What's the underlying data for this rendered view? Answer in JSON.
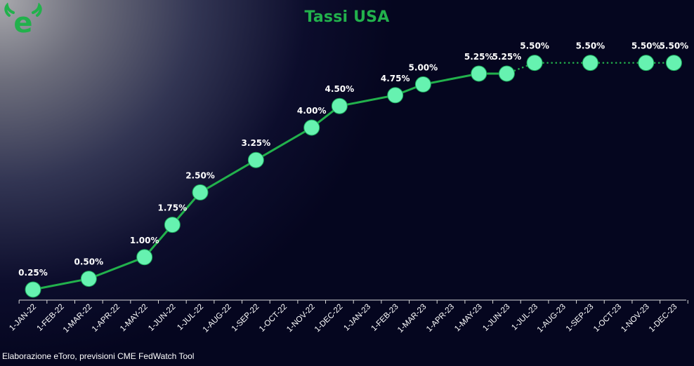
{
  "header": {
    "title": "Tassi USA"
  },
  "logo": {
    "text": "e",
    "icon": "etoro-bull-icon",
    "color": "#22b14c"
  },
  "footer": {
    "source": "Elaborazione eToro, previsioni CME FedWatch Tool"
  },
  "colors": {
    "line": "#22b14c",
    "marker": "#66f2b0",
    "title": "#22b14c"
  },
  "chart_data": {
    "type": "line",
    "title": "Tassi USA",
    "xlabel": "",
    "ylabel": "",
    "grid": false,
    "legend": "none",
    "categories": [
      "1-JAN-22",
      "1-FEB-22",
      "1-MAR-22",
      "1-APR-22",
      "1-MAY-22",
      "1-JUN-22",
      "1-JUL-22",
      "1-AUG-22",
      "1-SEP-22",
      "1-OCT-22",
      "1-NOV-22",
      "1-DEC-22",
      "1-JAN-23",
      "1-FEB-23",
      "1-MAR-23",
      "1-APR-23",
      "1-MAY-23",
      "1-JUN-23",
      "1-JUL-23",
      "1-AUG-23",
      "1-SEP-23",
      "1-OCT-23",
      "1-NOV-23",
      "1-DEC-23"
    ],
    "series": [
      {
        "style": "solid",
        "points": [
          {
            "x": "1-JAN-22",
            "y": 0.25,
            "label": "0.25%"
          },
          {
            "x": "1-MAR-22",
            "y": 0.5,
            "label": "0.50%"
          },
          {
            "x": "1-MAY-22",
            "y": 1.0,
            "label": "1.00%"
          },
          {
            "x": "1-JUN-22",
            "y": 1.75,
            "label": "1.75%"
          },
          {
            "x": "1-JUL-22",
            "y": 2.5,
            "label": "2.50%"
          },
          {
            "x": "1-SEP-22",
            "y": 3.25,
            "label": "3.25%"
          },
          {
            "x": "1-NOV-22",
            "y": 4.0,
            "label": "4.00%"
          },
          {
            "x": "1-DEC-22",
            "y": 4.5,
            "label": "4.50%"
          },
          {
            "x": "1-FEB-23",
            "y": 4.75,
            "label": "4.75%"
          },
          {
            "x": "1-MAR-23",
            "y": 5.0,
            "label": "5.00%"
          },
          {
            "x": "1-MAY-23",
            "y": 5.25,
            "label": "5.25%"
          },
          {
            "x": "1-JUN-23",
            "y": 5.25,
            "label": "5.25%"
          }
        ]
      },
      {
        "style": "dotted",
        "points": [
          {
            "x": "1-JUN-23",
            "y": 5.25,
            "label": ""
          },
          {
            "x": "1-JUL-23",
            "y": 5.5,
            "label": "5.50%"
          },
          {
            "x": "1-SEP-23",
            "y": 5.5,
            "label": "5.50%"
          },
          {
            "x": "1-NOV-23",
            "y": 5.5,
            "label": "5.50%"
          },
          {
            "x": "1-DEC-23",
            "y": 5.5,
            "label": "5.50%"
          }
        ]
      }
    ]
  }
}
